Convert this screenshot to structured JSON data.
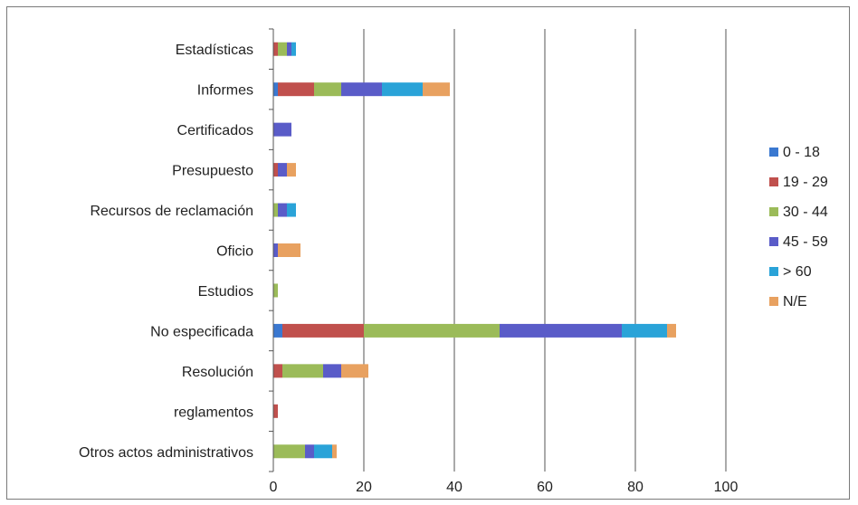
{
  "chart_data": {
    "type": "bar",
    "orientation": "horizontal",
    "stacked": true,
    "categories": [
      "Estadísticas",
      "Informes",
      "Certificados",
      "Presupuesto",
      "Recursos de reclamación",
      "Oficio",
      "Estudios",
      "No especificada",
      "Resolución",
      "reglamentos",
      "Otros actos administrativos"
    ],
    "series": [
      {
        "name": "0 - 18",
        "color": "#3a78d0",
        "values": [
          0,
          1,
          0,
          0,
          0,
          0,
          0,
          2,
          0,
          0,
          0
        ]
      },
      {
        "name": "19 - 29",
        "color": "#c0504d",
        "values": [
          1,
          8,
          0,
          1,
          0,
          0,
          0,
          18,
          2,
          1,
          0
        ]
      },
      {
        "name": "30 - 44",
        "color": "#9bbb59",
        "values": [
          2,
          6,
          0,
          0,
          1,
          0,
          1,
          30,
          9,
          0,
          7
        ]
      },
      {
        "name": "45 - 59",
        "color": "#5a5cc8",
        "values": [
          1,
          9,
          4,
          2,
          2,
          1,
          0,
          27,
          4,
          0,
          2
        ]
      },
      {
        "name": "> 60",
        "color": "#2aa3d8",
        "values": [
          1,
          9,
          0,
          0,
          2,
          0,
          0,
          10,
          0,
          0,
          4
        ]
      },
      {
        "name": "N/E",
        "color": "#e8a160",
        "values": [
          0,
          6,
          0,
          2,
          0,
          5,
          0,
          2,
          6,
          0,
          1
        ]
      }
    ],
    "xlim": [
      0,
      100
    ],
    "xticks": [
      "0",
      "20",
      "40",
      "60",
      "80",
      "100"
    ],
    "gridlines": "vertical",
    "legend_position": "right"
  }
}
